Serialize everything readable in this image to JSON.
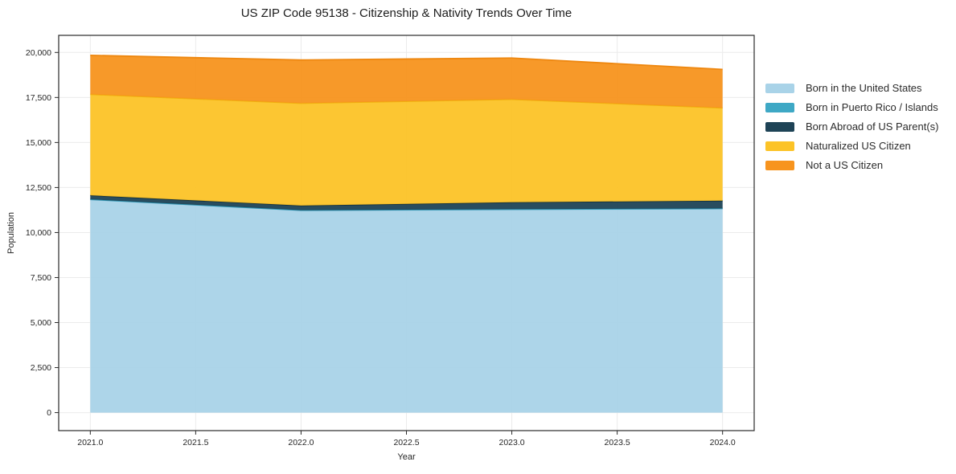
{
  "chart_data": {
    "type": "area",
    "stacked": true,
    "title": "US ZIP Code 95138 - Citizenship & Nativity Trends Over Time",
    "xlabel": "Year",
    "ylabel": "Population",
    "x": [
      2021,
      2022,
      2023,
      2024
    ],
    "series": [
      {
        "name": "Born in the United States",
        "values": [
          11830,
          11230,
          11280,
          11320
        ],
        "color": "#a9d3e8",
        "edge": "#8fc3dd"
      },
      {
        "name": "Born in Puerto Rico / Islands",
        "values": [
          15,
          10,
          15,
          20
        ],
        "color": "#3ea8c5",
        "edge": "#2e93b0"
      },
      {
        "name": "Born Abroad of US Parent(s)",
        "values": [
          220,
          260,
          385,
          430
        ],
        "color": "#1e4356",
        "edge": "#16333f"
      },
      {
        "name": "Naturalized US Citizen",
        "values": [
          5610,
          5680,
          5720,
          5150
        ],
        "color": "#fcc327",
        "edge": "#f0b20f"
      },
      {
        "name": "Not a US Citizen",
        "values": [
          2165,
          2400,
          2290,
          2140
        ],
        "color": "#f7941e",
        "edge": "#ee870f"
      }
    ],
    "totals": [
      19840,
      19580,
      19690,
      19060
    ],
    "xticks": {
      "values": [
        2021.0,
        2021.5,
        2022.0,
        2022.5,
        2023.0,
        2023.5,
        2024.0
      ],
      "labels": [
        "2021.0",
        "2021.5",
        "2022.0",
        "2022.5",
        "2023.0",
        "2023.5",
        "2024.0"
      ]
    },
    "yticks": {
      "values": [
        0,
        2500,
        5000,
        7500,
        10000,
        12500,
        15000,
        17500,
        20000
      ],
      "labels": [
        "0",
        "2,500",
        "5,000",
        "7,500",
        "10,000",
        "12,500",
        "15,000",
        "17,500",
        "20,000"
      ]
    },
    "xlim": [
      2020.85,
      2024.15
    ],
    "ylim": [
      -1000,
      20950
    ],
    "grid": true,
    "legend_position": "right",
    "colors": {
      "grid": "#ebebeb",
      "spine": "#2a2a2a",
      "tick_label": "#262626",
      "background": "#ffffff"
    }
  }
}
